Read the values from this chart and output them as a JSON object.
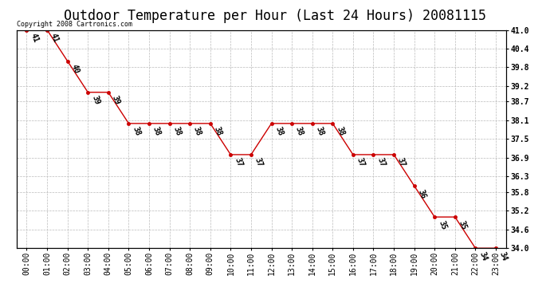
{
  "title": "Outdoor Temperature per Hour (Last 24 Hours) 20081115",
  "copyright_text": "Copyright 2008 Cartronics.com",
  "hours": [
    "00:00",
    "01:00",
    "02:00",
    "03:00",
    "04:00",
    "05:00",
    "06:00",
    "07:00",
    "08:00",
    "09:00",
    "10:00",
    "11:00",
    "12:00",
    "13:00",
    "14:00",
    "15:00",
    "16:00",
    "17:00",
    "18:00",
    "19:00",
    "20:00",
    "21:00",
    "22:00",
    "23:00"
  ],
  "temps": [
    41,
    41,
    40,
    39,
    39,
    38,
    38,
    38,
    38,
    38,
    37,
    37,
    38,
    38,
    38,
    38,
    37,
    37,
    37,
    36,
    35,
    35,
    34,
    34
  ],
  "ylim_min": 34.0,
  "ylim_max": 41.0,
  "yticks": [
    34.0,
    34.6,
    35.2,
    35.8,
    36.3,
    36.9,
    37.5,
    38.1,
    38.7,
    39.2,
    39.8,
    40.4,
    41.0
  ],
  "ytick_labels": [
    "34.0",
    "34.6",
    "35.2",
    "35.8",
    "36.3",
    "36.9",
    "37.5",
    "38.1",
    "38.7",
    "39.2",
    "39.8",
    "40.4",
    "41.0"
  ],
  "line_color": "#cc0000",
  "marker_color": "#cc0000",
  "bg_color": "#ffffff",
  "grid_color": "#bbbbbb",
  "title_fontsize": 12,
  "label_fontsize": 7,
  "annot_fontsize": 7,
  "copyright_fontsize": 6
}
